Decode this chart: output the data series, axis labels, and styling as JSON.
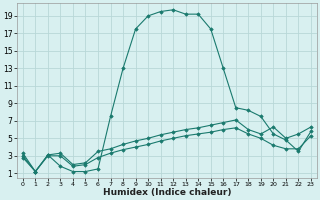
{
  "xlabel": "Humidex (Indice chaleur)",
  "bg_color": "#d8f0f0",
  "grid_color": "#b8d8d8",
  "line_color": "#1a7a6e",
  "xlim": [
    -0.5,
    23.5
  ],
  "ylim": [
    0.5,
    20.5
  ],
  "yticks": [
    1,
    3,
    5,
    7,
    9,
    11,
    13,
    15,
    17,
    19
  ],
  "xticks": [
    0,
    1,
    2,
    3,
    4,
    5,
    6,
    7,
    8,
    9,
    10,
    11,
    12,
    13,
    14,
    15,
    16,
    17,
    18,
    19,
    20,
    21,
    22,
    23
  ],
  "line1_x": [
    0,
    1,
    2,
    3,
    4,
    5,
    6,
    7,
    8,
    9,
    10,
    11,
    12,
    13,
    14,
    15,
    16,
    17,
    18,
    19,
    20,
    21,
    22,
    23
  ],
  "line1_y": [
    2.8,
    1.2,
    3.1,
    1.8,
    1.2,
    1.2,
    1.5,
    7.5,
    13.0,
    17.5,
    19.0,
    19.5,
    19.7,
    19.2,
    19.2,
    17.5,
    13.0,
    8.5,
    8.2,
    7.5,
    5.5,
    4.8,
    3.5,
    5.8
  ],
  "line2_x": [
    0,
    1,
    2,
    3,
    4,
    5,
    6,
    7,
    8,
    9,
    10,
    11,
    12,
    13,
    14,
    15,
    16,
    17,
    18,
    19,
    20,
    21,
    22,
    23
  ],
  "line2_y": [
    3.3,
    1.2,
    3.1,
    3.3,
    2.0,
    2.2,
    3.5,
    3.8,
    4.3,
    4.7,
    5.0,
    5.4,
    5.7,
    6.0,
    6.2,
    6.5,
    6.8,
    7.1,
    6.0,
    5.5,
    6.3,
    5.0,
    5.5,
    6.3
  ],
  "line3_x": [
    0,
    1,
    2,
    3,
    4,
    5,
    6,
    7,
    8,
    9,
    10,
    11,
    12,
    13,
    14,
    15,
    16,
    17,
    18,
    19,
    20,
    21,
    22,
    23
  ],
  "line3_y": [
    3.0,
    1.2,
    3.0,
    3.0,
    1.8,
    2.0,
    2.8,
    3.3,
    3.7,
    4.0,
    4.3,
    4.7,
    5.0,
    5.3,
    5.5,
    5.7,
    6.0,
    6.2,
    5.5,
    5.0,
    4.2,
    3.8,
    3.8,
    5.3
  ]
}
